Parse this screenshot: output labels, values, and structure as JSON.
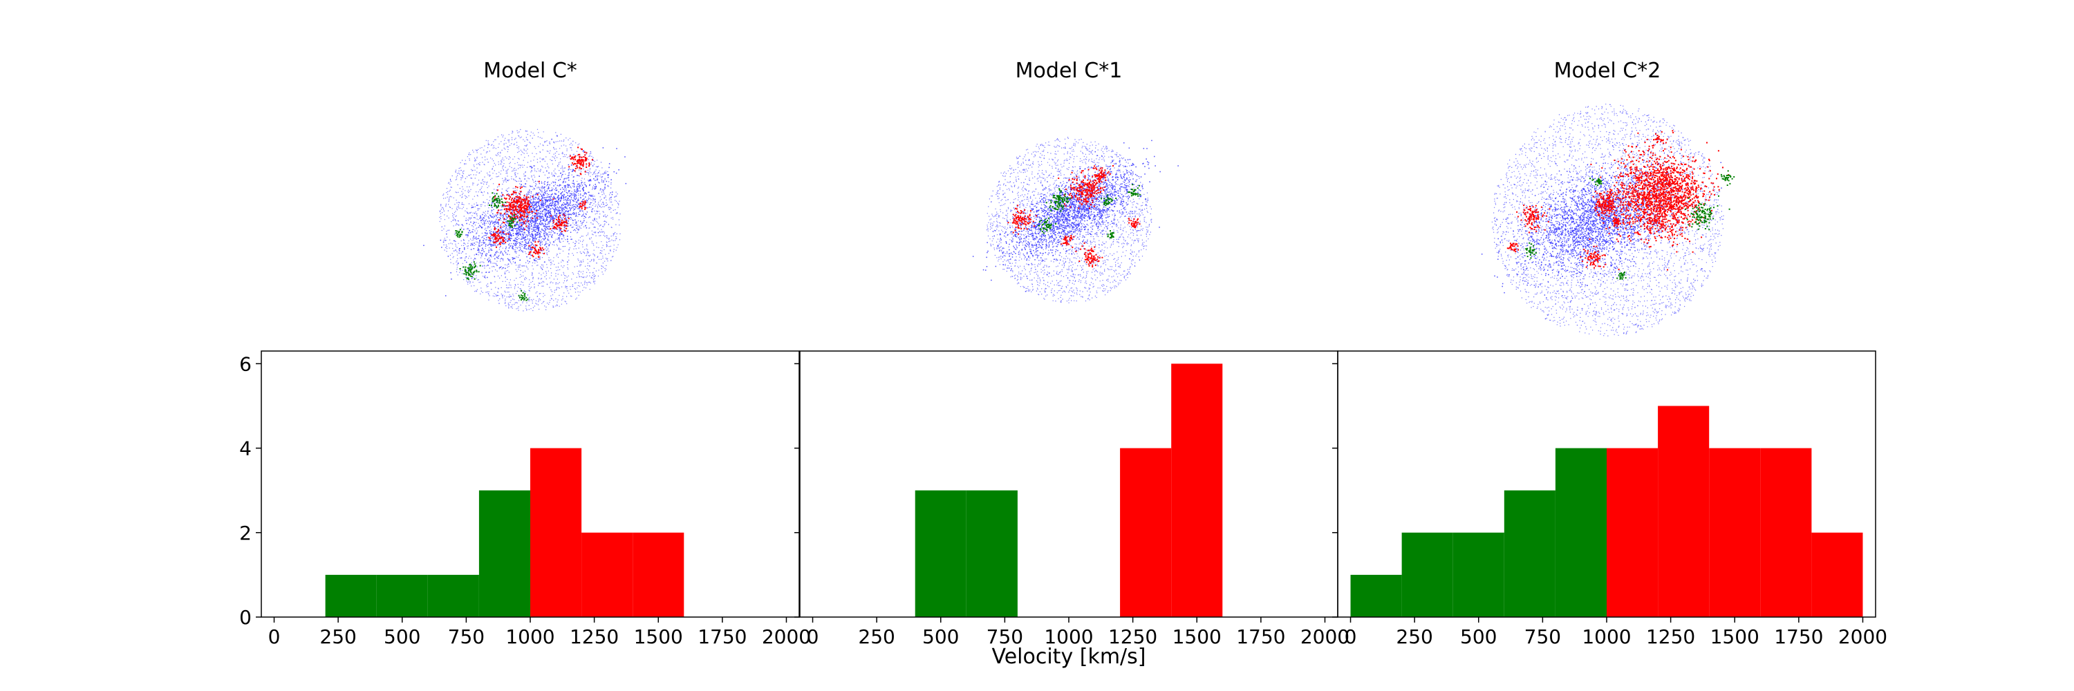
{
  "figure": {
    "xlabel": "Velocity [km/s]"
  },
  "colors": {
    "halo": "#0000ff",
    "low_velocity": "#008000",
    "high_velocity": "#ff0000"
  },
  "chart_data": [
    {
      "type": "bar",
      "title": "Model C*",
      "xlim": [
        -50,
        2050
      ],
      "ylim": [
        0,
        6.3
      ],
      "xticks": [
        0,
        250,
        500,
        750,
        1000,
        1250,
        1500,
        1750,
        2000
      ],
      "yticks": [
        0,
        2,
        4,
        6
      ],
      "bin_edges": [
        200,
        400,
        600,
        800,
        1000,
        1200,
        1400,
        1600
      ],
      "series": [
        {
          "color": "green",
          "bins": [
            [
              200,
              400,
              1
            ],
            [
              400,
              600,
              1
            ],
            [
              600,
              800,
              1
            ],
            [
              800,
              1000,
              3
            ]
          ]
        },
        {
          "color": "red",
          "bins": [
            [
              1000,
              1200,
              4
            ],
            [
              1200,
              1400,
              2
            ],
            [
              1400,
              1600,
              2
            ]
          ]
        }
      ]
    },
    {
      "type": "bar",
      "title": "Model C*1",
      "xlim": [
        -50,
        2050
      ],
      "ylim": [
        0,
        6.3
      ],
      "xticks": [
        0,
        250,
        500,
        750,
        1000,
        1250,
        1500,
        1750,
        2000
      ],
      "yticks": [
        0,
        2,
        4,
        6
      ],
      "series": [
        {
          "color": "green",
          "bins": [
            [
              400,
              600,
              3
            ],
            [
              600,
              800,
              3
            ]
          ]
        },
        {
          "color": "red",
          "bins": [
            [
              1200,
              1400,
              4
            ],
            [
              1400,
              1600,
              6
            ]
          ]
        }
      ]
    },
    {
      "type": "bar",
      "title": "Model C*2",
      "xlim": [
        -50,
        2050
      ],
      "ylim": [
        0,
        6.3
      ],
      "xticks": [
        0,
        250,
        500,
        750,
        1000,
        1250,
        1500,
        1750,
        2000
      ],
      "yticks": [
        0,
        2,
        4,
        6
      ],
      "series": [
        {
          "color": "green",
          "bins": [
            [
              0,
              200,
              1
            ],
            [
              200,
              400,
              2
            ],
            [
              400,
              600,
              2
            ],
            [
              600,
              800,
              3
            ],
            [
              800,
              1000,
              4
            ]
          ]
        },
        {
          "color": "red",
          "bins": [
            [
              1000,
              1200,
              4
            ],
            [
              1200,
              1400,
              5
            ],
            [
              1400,
              1600,
              4
            ],
            [
              1600,
              1800,
              4
            ],
            [
              1800,
              2000,
              2
            ]
          ]
        }
      ]
    }
  ]
}
